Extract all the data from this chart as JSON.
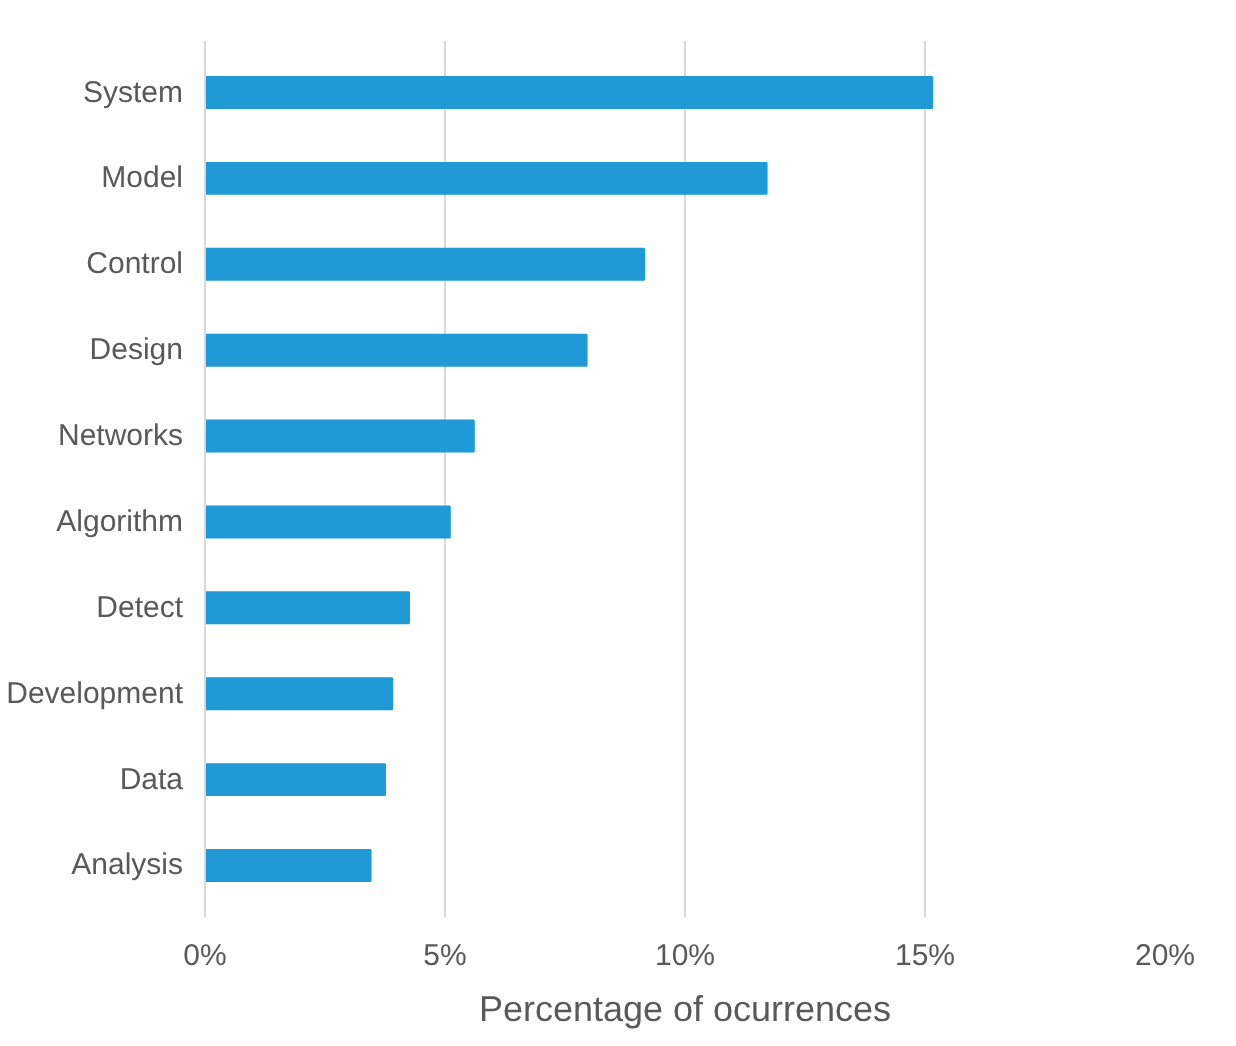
{
  "chart_data": {
    "type": "bar",
    "orientation": "horizontal",
    "xlabel": "Percentage of ocurrences",
    "categories": [
      "System",
      "Model",
      "Control",
      "Design",
      "Networks",
      "Algorithm",
      "Detect",
      "Development",
      "Data",
      "Analysis"
    ],
    "values": [
      15.15,
      11.7,
      9.15,
      7.95,
      5.6,
      5.1,
      4.25,
      3.9,
      3.75,
      3.45
    ],
    "color": "#1f9ad6",
    "xlim": [
      0,
      20
    ],
    "xticks": [
      {
        "value": 0,
        "label": "0%"
      },
      {
        "value": 5,
        "label": "5%"
      },
      {
        "value": 10,
        "label": "10%"
      },
      {
        "value": 15,
        "label": "15%"
      },
      {
        "value": 20,
        "label": "20%"
      }
    ],
    "grid": "x"
  }
}
